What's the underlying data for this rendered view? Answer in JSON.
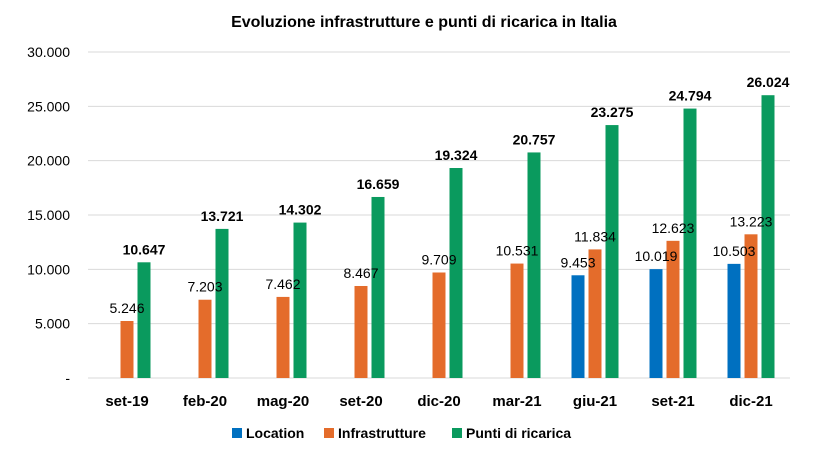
{
  "chart_data": {
    "type": "bar",
    "title": "Evoluzione infrastrutture e punti di ricarica in Italia",
    "xlabel": "",
    "ylabel": "",
    "ylim": [
      0,
      30000
    ],
    "yticks": [
      0,
      5000,
      10000,
      15000,
      20000,
      25000,
      30000
    ],
    "ytick_labels": [
      "-",
      "5.000",
      "10.000",
      "15.000",
      "20.000",
      "25.000",
      "30.000"
    ],
    "grid": true,
    "legend_position": "bottom",
    "categories": [
      "set-19",
      "feb-20",
      "mag-20",
      "set-20",
      "dic-20",
      "mar-21",
      "giu-21",
      "set-21",
      "dic-21"
    ],
    "series": [
      {
        "name": "Location",
        "color": "#0070c0",
        "values": [
          null,
          null,
          null,
          null,
          null,
          null,
          9453,
          10019,
          10503
        ],
        "labels": [
          "",
          "",
          "",
          "",
          "",
          "",
          "9.453",
          "10.019",
          "10.503"
        ],
        "label_bold": false
      },
      {
        "name": "Infrastrutture",
        "color": "#e46c2b",
        "values": [
          5246,
          7203,
          7462,
          8467,
          9709,
          10531,
          11834,
          12623,
          13223
        ],
        "labels": [
          "5.246",
          "7.203",
          "7.462",
          "8.467",
          "9.709",
          "10.531",
          "11.834",
          "12.623",
          "13.223"
        ],
        "label_bold": false
      },
      {
        "name": "Punti di ricarica",
        "color": "#0a9a5e",
        "values": [
          10647,
          13721,
          14302,
          16659,
          19324,
          20757,
          23275,
          24794,
          26024
        ],
        "labels": [
          "10.647",
          "13.721",
          "14.302",
          "16.659",
          "19.324",
          "20.757",
          "23.275",
          "24.794",
          "26.024"
        ],
        "label_bold": true
      }
    ]
  }
}
